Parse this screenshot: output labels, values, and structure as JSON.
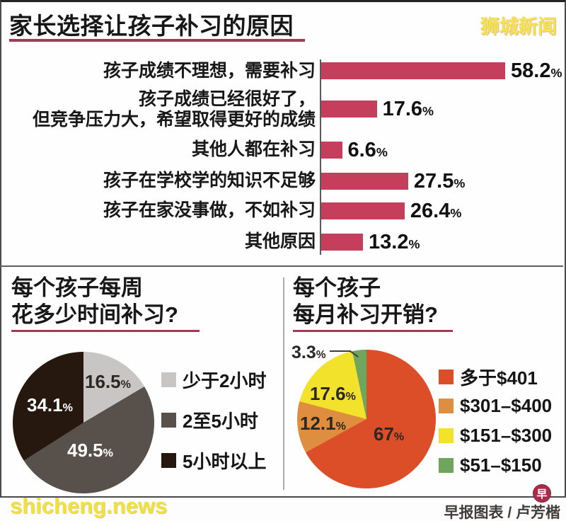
{
  "page": {
    "brand_watermark": "狮城新闻",
    "footer_watermark": "shicheng.news",
    "credit": "早报图表 / 卢芳楷",
    "credit_logo_char": "早"
  },
  "colors": {
    "bar_crimson": "#C53E5C",
    "title_underline": "#A33B54",
    "frame_border": "#4a4a4a",
    "watermark_yellow": "#EFE23B",
    "credit_badge_crimson": "#A72C4C"
  },
  "ui": {
    "pct": "%",
    "bar_label_lines": [
      [
        "孩子成绩不理想，需要补习"
      ],
      [
        "孩子成绩已经很好了，",
        "但竞争压力大，希望取得更好的成绩"
      ],
      [
        "其他人都在补习"
      ],
      [
        "孩子在学校学的知识不足够"
      ],
      [
        "孩子在家没事做，不如补习"
      ],
      [
        "其他原因"
      ]
    ],
    "time_title_lines": [
      "每个孩子每周",
      "花多少时间补习?"
    ],
    "cost_title_lines": [
      "每个孩子",
      "每月补习开销?"
    ]
  },
  "chart_data": [
    {
      "type": "bar",
      "orientation": "horizontal",
      "title": "家长选择让孩子补习的原因",
      "categories": [
        "孩子成绩不理想，需要补习",
        "孩子成绩已经很好了，但竞争压力大，希望取得更好的成绩",
        "其他人都在补习",
        "孩子在学校学的知识不足够",
        "孩子在家没事做，不如补习",
        "其他原因"
      ],
      "values": [
        58.2,
        17.6,
        6.6,
        27.5,
        26.4,
        13.2
      ],
      "unit": "%",
      "bar_color": "#C53E5C",
      "xlim": [
        0,
        65
      ],
      "grid": false,
      "value_labels": "end-of-bar"
    },
    {
      "type": "pie",
      "title": "每个孩子每周花多少时间补习?",
      "labels": [
        "少于2小时",
        "2至5小时",
        "5小时以上"
      ],
      "values": [
        16.5,
        49.5,
        34.1
      ],
      "colors": [
        "#C8C6C4",
        "#57504B",
        "#26180F"
      ],
      "unit": "%",
      "start_angle": "top",
      "direction": "clockwise",
      "legend_position": "right"
    },
    {
      "type": "pie",
      "title": "每个孩子每月补习开销?",
      "labels": [
        "多于$401",
        "$301–$400",
        "$151–$300",
        "$51–$150"
      ],
      "values": [
        67,
        12.1,
        17.6,
        3.3
      ],
      "colors": [
        "#DC4E28",
        "#DF8D3E",
        "#F3E22B",
        "#6FA55D"
      ],
      "unit": "%",
      "start_angle": "top",
      "direction": "clockwise",
      "legend_position": "right"
    }
  ]
}
